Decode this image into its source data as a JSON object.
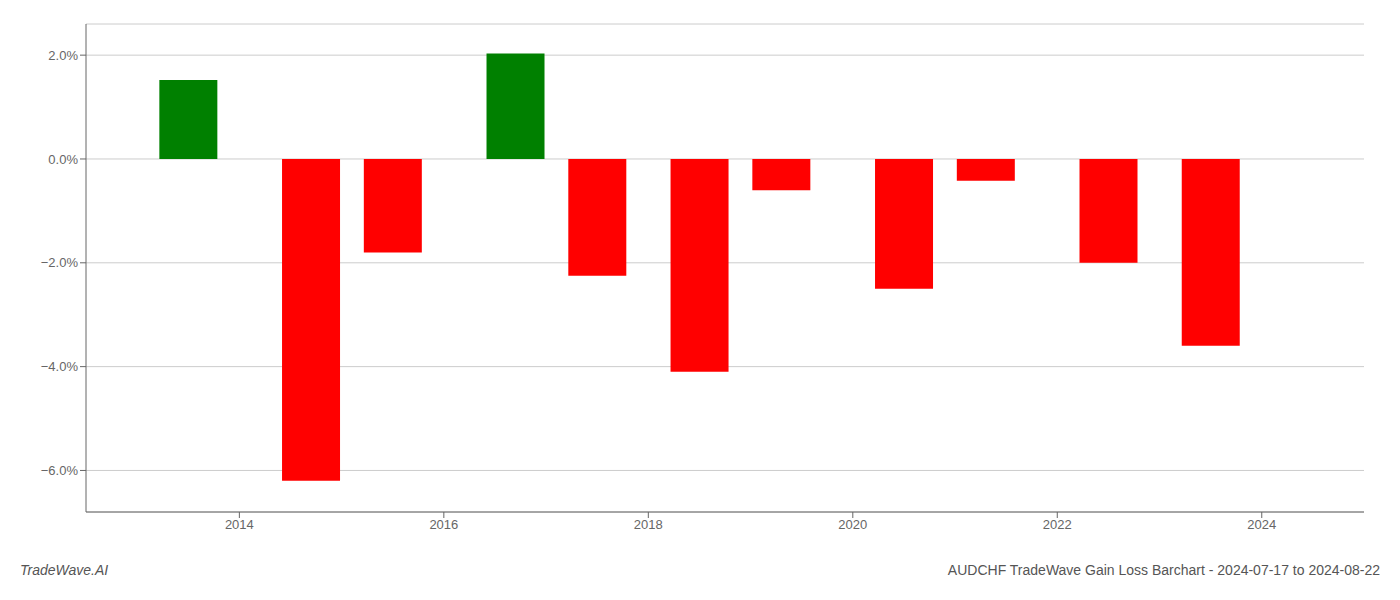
{
  "chart_data": {
    "type": "bar",
    "x": [
      2013.5,
      2014.7,
      2015.5,
      2016.7,
      2017.5,
      2018.5,
      2019.3,
      2020.5,
      2021.3,
      2022.5,
      2023.5
    ],
    "values": [
      1.52,
      -6.2,
      -1.8,
      2.03,
      -2.25,
      -4.1,
      -0.6,
      -2.5,
      -0.42,
      -2.0,
      -3.6
    ],
    "colors": [
      "#008000",
      "#ff0000",
      "#ff0000",
      "#008000",
      "#ff0000",
      "#ff0000",
      "#ff0000",
      "#ff0000",
      "#ff0000",
      "#ff0000",
      "#ff0000"
    ],
    "xlim": [
      2012.5,
      2025.0
    ],
    "ylim": [
      -6.8,
      2.6
    ],
    "xticks": [
      2014,
      2016,
      2018,
      2020,
      2022,
      2024
    ],
    "yticks": [
      {
        "value": 2.0,
        "label": "2.0%"
      },
      {
        "value": 0.0,
        "label": "0.0%"
      },
      {
        "value": -2.0,
        "label": "−2.0%"
      },
      {
        "value": -4.0,
        "label": "−4.0%"
      },
      {
        "value": -6.0,
        "label": "−6.0%"
      }
    ],
    "grid": true,
    "annotations": [
      "TradeWave.AI",
      "AUDCHF TradeWave Gain Loss Barchart - 2024-07-17 to 2024-08-22"
    ]
  }
}
